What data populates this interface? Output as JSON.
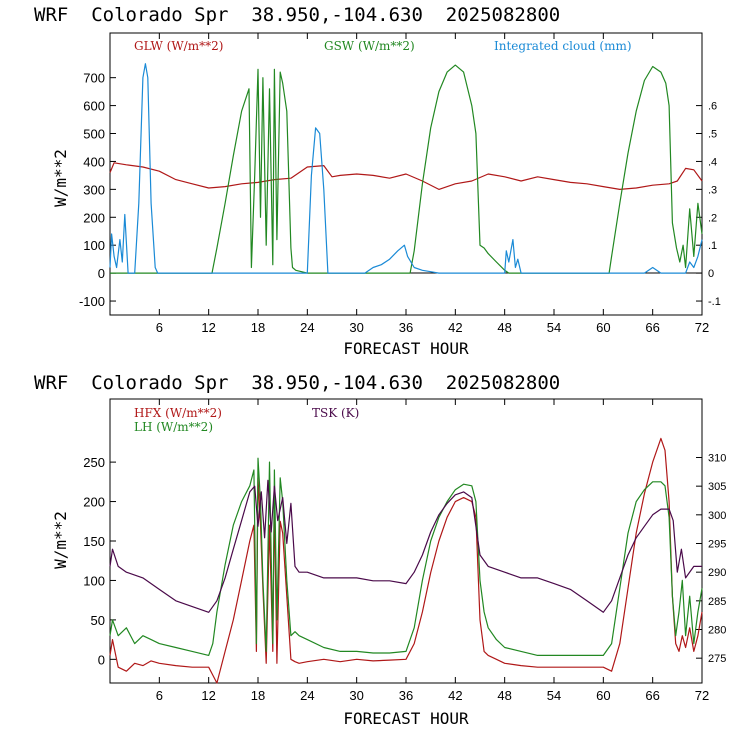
{
  "colors": {
    "red": "#b01818",
    "green": "#228822",
    "blue": "#1a8ad6",
    "purple": "#4a0a4a"
  },
  "chart_data": [
    {
      "type": "line",
      "title": "WRF  Colorado Spr  38.950,-104.630  2025082800",
      "xlabel": "FORECAST HOUR",
      "ylabel": "W/m**2",
      "xlim": [
        0,
        72
      ],
      "ylim": [
        -150,
        860
      ],
      "x_ticks": [
        6,
        12,
        18,
        24,
        30,
        36,
        42,
        48,
        54,
        60,
        66,
        72
      ],
      "y_ticks": [
        -100,
        0,
        100,
        200,
        300,
        400,
        500,
        600,
        700
      ],
      "y2lim": [
        -0.15,
        0.86
      ],
      "y2_ticks": [
        {
          "v": -0.1,
          "label": "-.1"
        },
        {
          "v": 0,
          "label": "0"
        },
        {
          "v": 0.1,
          "label": ".1"
        },
        {
          "v": 0.2,
          "label": ".2"
        },
        {
          "v": 0.3,
          "label": ".3"
        },
        {
          "v": 0.4,
          "label": ".4"
        },
        {
          "v": 0.5,
          "label": ".5"
        },
        {
          "v": 0.6,
          "label": ".6"
        }
      ],
      "legend": [
        "GLW (W/m**2)",
        "GSW (W/m**2)",
        "Integrated cloud (mm)"
      ],
      "series": [
        {
          "name": "GLW (W/m**2)",
          "color": "red",
          "axis": "left",
          "x": [
            0,
            0.5,
            2,
            4,
            6,
            8,
            10,
            12,
            14,
            16,
            18,
            20,
            22,
            24,
            26,
            27,
            28,
            30,
            32,
            34,
            36,
            38,
            40,
            42,
            44,
            46,
            48,
            50,
            52,
            54,
            56,
            58,
            60,
            62,
            64,
            66,
            68,
            69,
            70,
            71,
            72
          ],
          "values": [
            360,
            395,
            388,
            380,
            365,
            335,
            320,
            305,
            310,
            320,
            325,
            335,
            340,
            380,
            385,
            345,
            350,
            355,
            350,
            340,
            355,
            330,
            300,
            320,
            330,
            355,
            345,
            330,
            345,
            335,
            325,
            320,
            310,
            300,
            305,
            315,
            320,
            330,
            375,
            370,
            330
          ]
        },
        {
          "name": "GSW (W/m**2)",
          "color": "green",
          "axis": "left",
          "x": [
            0,
            12.4,
            13,
            14,
            15,
            16,
            16.9,
            17.2,
            17.6,
            18,
            18.3,
            18.6,
            19,
            19.4,
            19.8,
            20,
            20.3,
            20.7,
            21,
            21.5,
            22,
            22.2,
            22.6,
            24,
            36.5,
            37,
            38,
            39,
            40,
            41,
            42,
            43,
            44,
            44.5,
            45,
            45.5,
            46,
            47,
            48,
            48.5,
            60.7,
            61,
            62,
            63,
            64,
            65,
            66,
            67,
            67.6,
            68,
            68.4,
            68.9,
            69.3,
            69.7,
            70,
            70.5,
            71,
            71.5,
            72
          ],
          "values": [
            0,
            0,
            90,
            250,
            420,
            580,
            660,
            20,
            350,
            730,
            200,
            700,
            100,
            660,
            30,
            730,
            120,
            720,
            680,
            580,
            90,
            20,
            10,
            0,
            0,
            80,
            320,
            520,
            650,
            720,
            745,
            720,
            600,
            500,
            100,
            90,
            70,
            40,
            10,
            0,
            0,
            60,
            250,
            430,
            580,
            690,
            740,
            720,
            680,
            600,
            180,
            90,
            40,
            100,
            20,
            230,
            60,
            250,
            140
          ]
        },
        {
          "name": "Integrated cloud (mm)",
          "color": "blue",
          "axis": "right",
          "x": [
            0,
            0.2,
            0.5,
            0.8,
            1.2,
            1.5,
            1.8,
            2.2,
            3,
            3.5,
            4,
            4.3,
            4.6,
            5,
            5.5,
            5.8,
            6,
            24,
            24.5,
            25,
            25.5,
            26,
            26.5,
            31,
            32,
            33,
            34,
            35,
            35.8,
            36.2,
            37,
            38,
            39,
            40,
            48,
            48.2,
            48.5,
            49,
            49.3,
            49.6,
            50,
            65,
            66,
            67,
            70,
            70.5,
            71,
            71.5,
            72
          ],
          "values": [
            0.02,
            0.14,
            0.06,
            0.02,
            0.12,
            0.04,
            0.21,
            0,
            0,
            0.25,
            0.7,
            0.75,
            0.7,
            0.25,
            0.02,
            0,
            0,
            0,
            0.35,
            0.52,
            0.5,
            0.3,
            0,
            0,
            0.02,
            0.03,
            0.05,
            0.08,
            0.1,
            0.06,
            0.02,
            0.01,
            0.005,
            0,
            0,
            0.08,
            0.04,
            0.12,
            0.02,
            0.05,
            0,
            0,
            0.02,
            0,
            0,
            0.04,
            0.02,
            0.06,
            0.12
          ]
        }
      ]
    },
    {
      "type": "line",
      "title": "WRF  Colorado Spr  38.950,-104.630  2025082800",
      "xlabel": "FORECAST HOUR",
      "ylabel": "W/m**2",
      "xlim": [
        0,
        72
      ],
      "ylim": [
        -30,
        330
      ],
      "x_ticks": [
        6,
        12,
        18,
        24,
        30,
        36,
        42,
        48,
        54,
        60,
        66,
        72
      ],
      "y_ticks": [
        0,
        50,
        100,
        150,
        200,
        250
      ],
      "y2lim": [
        270.67,
        320.2
      ],
      "y2_ticks": [
        {
          "v": 275,
          "label": "275"
        },
        {
          "v": 280,
          "label": "280"
        },
        {
          "v": 285,
          "label": "285"
        },
        {
          "v": 290,
          "label": "290"
        },
        {
          "v": 295,
          "label": "295"
        },
        {
          "v": 300,
          "label": "300"
        },
        {
          "v": 305,
          "label": "305"
        },
        {
          "v": 310,
          "label": "310"
        }
      ],
      "legend": [
        "HFX (W/m**2)",
        "LH  (W/m**2)",
        "TSK (K)"
      ],
      "series": [
        {
          "name": "HFX (W/m**2)",
          "color": "red",
          "axis": "left",
          "x": [
            0,
            0.3,
            1,
            2,
            3,
            4,
            5,
            6,
            8,
            10,
            12,
            12.5,
            13,
            14,
            15,
            16,
            17,
            17.5,
            17.8,
            18,
            18.3,
            18.6,
            19,
            19.4,
            19.8,
            20,
            20.3,
            20.7,
            21,
            21.5,
            22,
            22.5,
            23,
            24,
            26,
            28,
            30,
            32,
            34,
            36,
            37,
            38,
            39,
            40,
            41,
            42,
            43,
            44,
            44.5,
            45,
            45.5,
            46,
            47,
            48,
            50,
            52,
            54,
            56,
            58,
            60,
            61,
            62,
            63,
            64,
            65,
            66,
            67,
            67.5,
            68,
            68.4,
            68.8,
            69.2,
            69.6,
            70,
            70.5,
            71,
            71.5,
            72
          ],
          "values": [
            5,
            25,
            -10,
            -15,
            -5,
            -8,
            -2,
            -5,
            -8,
            -10,
            -10,
            -20,
            -30,
            10,
            50,
            100,
            150,
            170,
            10,
            230,
            170,
            90,
            -5,
            170,
            10,
            200,
            -5,
            175,
            160,
            80,
            0,
            -3,
            -5,
            -3,
            0,
            -3,
            0,
            -2,
            -1,
            0,
            20,
            60,
            110,
            150,
            180,
            200,
            205,
            200,
            180,
            50,
            10,
            5,
            0,
            -5,
            -8,
            -10,
            -10,
            -10,
            -10,
            -10,
            -15,
            20,
            90,
            160,
            210,
            250,
            280,
            265,
            200,
            80,
            20,
            10,
            30,
            15,
            40,
            10,
            30,
            60
          ]
        },
        {
          "name": "LH  (W/m**2)",
          "color": "green",
          "axis": "left",
          "x": [
            0,
            0.3,
            1,
            2,
            3,
            4,
            5,
            6,
            8,
            10,
            12,
            12.5,
            13,
            14,
            15,
            16,
            17,
            17.5,
            17.8,
            18,
            18.3,
            18.6,
            19,
            19.4,
            19.8,
            20,
            20.3,
            20.7,
            21,
            21.5,
            22,
            22.5,
            23,
            24,
            26,
            28,
            30,
            32,
            34,
            36,
            37,
            38,
            39,
            40,
            41,
            42,
            43,
            44,
            44.5,
            45,
            45.5,
            46,
            47,
            48,
            50,
            52,
            54,
            56,
            58,
            60,
            61,
            62,
            63,
            64,
            65,
            66,
            67,
            67.5,
            68,
            68.4,
            68.8,
            69.2,
            69.6,
            70,
            70.5,
            71,
            71.5,
            72
          ],
          "values": [
            30,
            50,
            30,
            40,
            20,
            30,
            25,
            20,
            15,
            10,
            5,
            20,
            60,
            120,
            170,
            200,
            220,
            240,
            20,
            255,
            200,
            100,
            10,
            250,
            20,
            240,
            50,
            230,
            200,
            100,
            30,
            35,
            30,
            25,
            15,
            10,
            10,
            8,
            8,
            10,
            40,
            100,
            150,
            180,
            200,
            215,
            222,
            220,
            200,
            100,
            60,
            40,
            25,
            15,
            10,
            5,
            5,
            5,
            5,
            5,
            20,
            90,
            160,
            200,
            215,
            225,
            225,
            220,
            180,
            80,
            30,
            60,
            100,
            30,
            80,
            20,
            60,
            90
          ]
        },
        {
          "name": "TSK (K)",
          "color": "purple",
          "axis": "right",
          "x": [
            0,
            0.3,
            1,
            2,
            4,
            6,
            8,
            10,
            12,
            13,
            14,
            15,
            16,
            17,
            17.6,
            18,
            18.4,
            18.8,
            19.2,
            19.6,
            20,
            20.4,
            21,
            21.5,
            22,
            22.5,
            23,
            24,
            26,
            28,
            30,
            32,
            34,
            36,
            37,
            38,
            39,
            40,
            41,
            42,
            43,
            44,
            44.5,
            45,
            46,
            48,
            50,
            52,
            54,
            56,
            58,
            60,
            61,
            62,
            63,
            64,
            65,
            66,
            67,
            68,
            68.5,
            69,
            69.5,
            70,
            71,
            72
          ],
          "values": [
            291,
            294,
            291,
            290,
            289,
            287,
            285,
            284,
            283,
            285,
            289,
            294,
            299,
            304,
            305,
            298,
            304,
            296,
            306,
            297,
            305,
            299,
            303,
            295,
            302,
            291,
            290,
            290,
            289,
            289,
            289,
            288.5,
            288.5,
            288,
            290,
            293,
            297,
            300,
            302,
            303.5,
            304,
            303,
            298,
            293,
            291,
            290,
            289,
            289,
            288,
            287,
            285,
            283,
            285,
            289,
            293,
            296,
            298,
            300,
            301,
            301,
            299,
            290,
            294,
            289,
            291,
            291
          ]
        }
      ]
    }
  ]
}
